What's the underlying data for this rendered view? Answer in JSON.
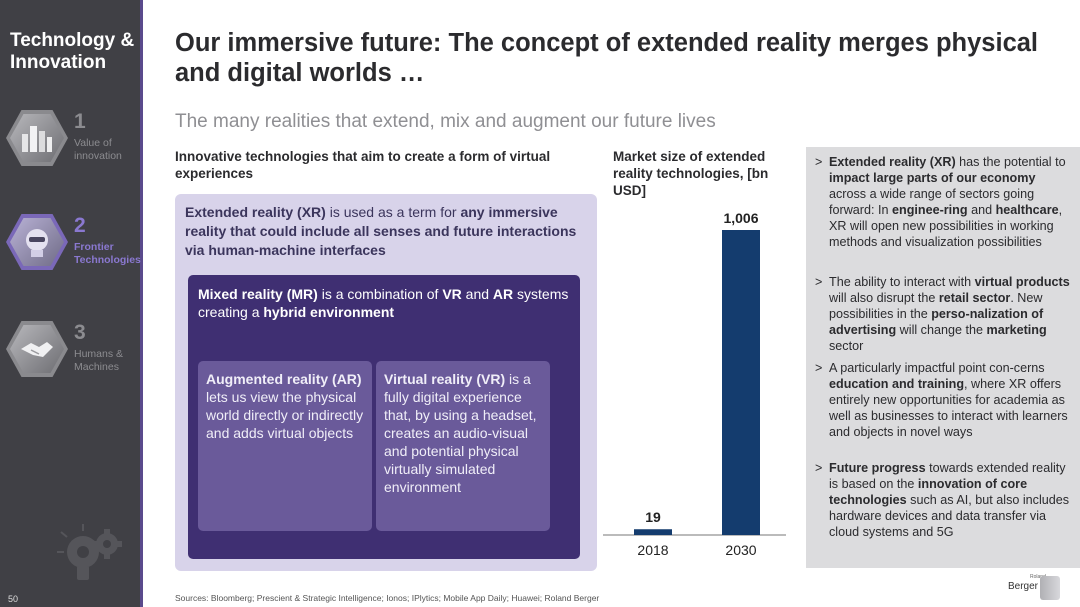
{
  "sidebar": {
    "title_line1": "Technology &",
    "title_line2": "Innovation",
    "items": [
      {
        "num": "1",
        "label_line1": "Value of",
        "label_line2": "innovation",
        "icon": "cityscape-icon",
        "active": false
      },
      {
        "num": "2",
        "label_line1": "Frontier",
        "label_line2": "Technologies",
        "icon": "robot-head-icon",
        "active": true
      },
      {
        "num": "3",
        "label_line1": "Humans &",
        "label_line2": "Machines",
        "icon": "handshake-icon",
        "active": false
      }
    ],
    "page_number": "50"
  },
  "header": {
    "title": "Our immersive future: The concept of extended reality merges physical and digital worlds …",
    "subtitle": "The many realities that extend, mix and augment our future lives"
  },
  "left": {
    "heading": "Innovative technologies that aim to create a form of virtual experiences",
    "xr": {
      "t1": "Extended reality (XR)",
      "t2": " is used as a term for ",
      "t3": "any immersive reality that could include all senses and future interactions via human-machine interfaces"
    },
    "mr": {
      "t1": "Mixed reality (MR)",
      "t2": " is a combination of ",
      "t3": "VR",
      "t4": " and ",
      "t5": "AR",
      "t6": " systems creating a ",
      "t7": "hybrid environment"
    },
    "ar": {
      "t1": "Augmented reality (AR)",
      "t2": " lets us view the physical world directly or indirectly and adds virtual objects"
    },
    "vr": {
      "t1": "Virtual reality (VR)",
      "t2": " is a fully digital experience that, by using a headset, creates an audio-visual and potential physical virtually simulated environment"
    }
  },
  "chart_data": {
    "type": "bar",
    "title": "Market size of extended reality technologies, [bn USD]",
    "categories": [
      "2018",
      "2030"
    ],
    "values": [
      19,
      1006
    ],
    "value_labels": [
      "19",
      "1,006"
    ],
    "ylim": [
      0,
      1006
    ],
    "bar_color": "#143c6e",
    "grid": false
  },
  "right": {
    "bullets": [
      {
        "marker": ">",
        "parts": [
          {
            "text": "Extended reality (XR)",
            "bold": true
          },
          {
            "text": " has the potential to ",
            "bold": false
          },
          {
            "text": "impact large parts of our economy",
            "bold": true
          },
          {
            "text": " across a wide range of sectors going forward: In ",
            "bold": false
          },
          {
            "text": "enginee-ring",
            "bold": true
          },
          {
            "text": " and ",
            "bold": false
          },
          {
            "text": "healthcare",
            "bold": true
          },
          {
            "text": ", XR will open new possibilities in working methods and visualization possibilities",
            "bold": false
          }
        ]
      },
      {
        "marker": ">",
        "parts": [
          {
            "text": "The ability to interact with ",
            "bold": false
          },
          {
            "text": "virtual products",
            "bold": true
          },
          {
            "text": " will also disrupt the ",
            "bold": false
          },
          {
            "text": "retail sector",
            "bold": true
          },
          {
            "text": ". New possibilities in the ",
            "bold": false
          },
          {
            "text": "perso-nalization of advertising",
            "bold": true
          },
          {
            "text": " will change the ",
            "bold": false
          },
          {
            "text": "marketing",
            "bold": true
          },
          {
            "text": " sector",
            "bold": false
          }
        ]
      },
      {
        "marker": ">",
        "parts": [
          {
            "text": "A particularly impactful point con-cerns ",
            "bold": false
          },
          {
            "text": "education and training",
            "bold": true
          },
          {
            "text": ", where XR offers entirely new opportunities for academia as well as businesses to interact with learners and objects in novel ways",
            "bold": false
          }
        ]
      },
      {
        "marker": ">",
        "parts": [
          {
            "text": "Future progress",
            "bold": true
          },
          {
            "text": " towards extended reality is based on the ",
            "bold": false
          },
          {
            "text": "innovation of core technologies",
            "bold": true
          },
          {
            "text": " such as AI, but also includes hardware devices and data transfer via cloud systems and 5G",
            "bold": false
          }
        ]
      }
    ]
  },
  "footer": {
    "sources": "Sources: Bloomberg; Prescient & Strategic Intelligence; Ionos; IPlytics; Mobile App Daily; Huawei; Roland Berger",
    "logo_small": "Roland",
    "logo_brand": "Berger"
  }
}
